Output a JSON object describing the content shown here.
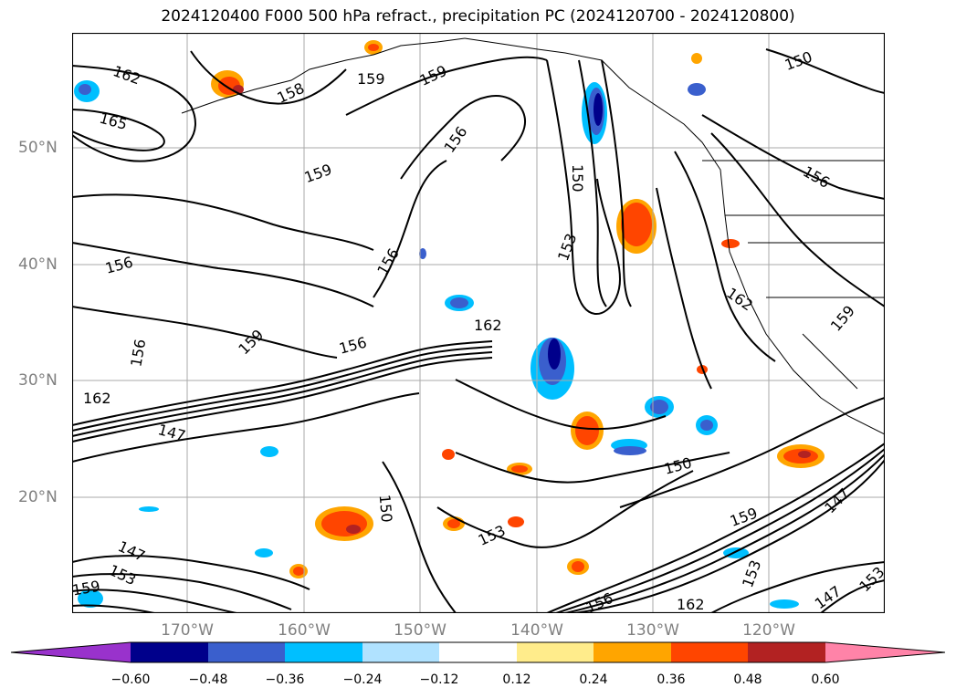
{
  "title": "2024120400 F000 500 hPa refract., precipitation PC (2024120700 - 2024120800)",
  "lat_labels": [
    "50°N",
    "40°N",
    "30°N",
    "20°N"
  ],
  "lon_labels": [
    "170°W",
    "160°W",
    "150°W",
    "140°W",
    "130°W",
    "120°W"
  ],
  "contour_labels": [
    "162",
    "165",
    "158",
    "159",
    "159",
    "156",
    "159",
    "156",
    "150",
    "153",
    "162",
    "156",
    "159",
    "156",
    "156",
    "162",
    "162",
    "147",
    "150",
    "150",
    "153",
    "150",
    "159",
    "147",
    "147",
    "153",
    "147",
    "153",
    "156",
    "162",
    "159",
    "153",
    "156",
    "159"
  ],
  "colorbar": {
    "ticks": [
      "−0.60",
      "−0.48",
      "−0.36",
      "−0.24",
      "−0.12",
      "0.12",
      "0.24",
      "0.36",
      "0.48",
      "0.60"
    ],
    "colors": [
      "#9932cc",
      "#00008b",
      "#3a5fcd",
      "#00bfff",
      "#b0e2ff",
      "#ffffff",
      "#ffec8b",
      "#ffa500",
      "#ff4500",
      "#b22222",
      "#ff83a8"
    ]
  }
}
